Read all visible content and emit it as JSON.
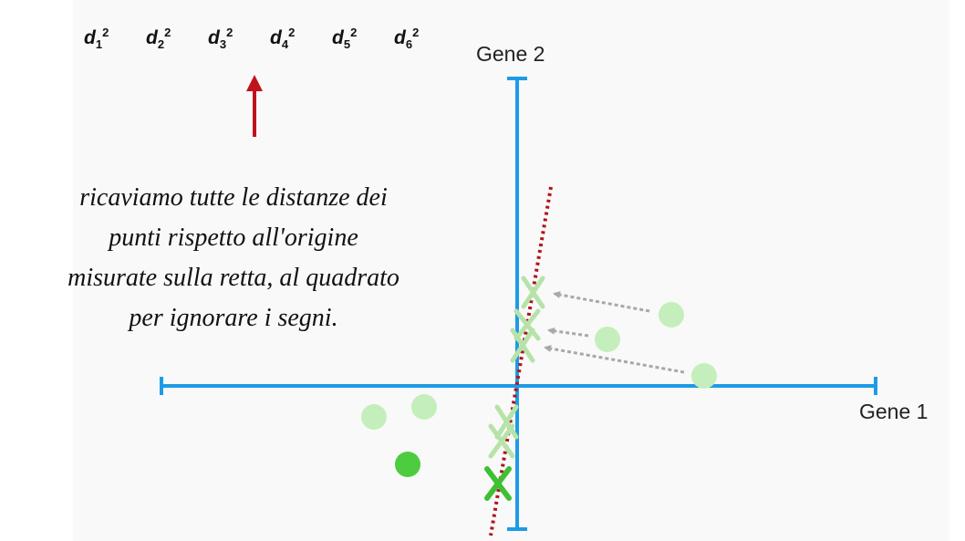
{
  "distance_labels": [
    {
      "base": "d",
      "index": "1",
      "power": "2"
    },
    {
      "base": "d",
      "index": "2",
      "power": "2"
    },
    {
      "base": "d",
      "index": "3",
      "power": "2"
    },
    {
      "base": "d",
      "index": "4",
      "power": "2"
    },
    {
      "base": "d",
      "index": "5",
      "power": "2"
    },
    {
      "base": "d",
      "index": "6",
      "power": "2"
    }
  ],
  "caption": [
    "ricaviamo tutte le distanze dei",
    "punti rispetto all'origine",
    "misurate sulla retta, al quadrato",
    "per ignorare i segni."
  ],
  "axes": {
    "x_label": "Gene 1",
    "y_label": "Gene 2"
  },
  "colors": {
    "axis": "#1e9be6",
    "fit_line": "#b0141c",
    "arrow_up": "#c0131c",
    "point_light": "#c4efbc",
    "point_strong": "#4ccc3e",
    "cross_light": "#b5e3a8",
    "cross_strong": "#3fbf34",
    "projection_arrow": "#a8a8a8"
  }
}
